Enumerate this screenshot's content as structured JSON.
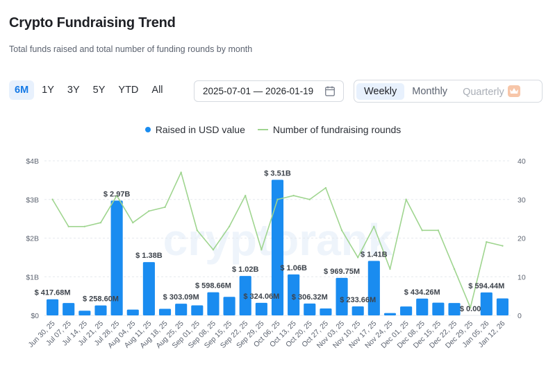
{
  "header": {
    "title": "Crypto Fundraising Trend",
    "subtitle": "Total funds raised and total number of funding rounds by month"
  },
  "range_tabs": [
    {
      "label": "6M",
      "active": true
    },
    {
      "label": "1Y",
      "active": false
    },
    {
      "label": "3Y",
      "active": false
    },
    {
      "label": "5Y",
      "active": false
    },
    {
      "label": "YTD",
      "active": false
    },
    {
      "label": "All",
      "active": false
    }
  ],
  "date_range": {
    "value": "2025-07-01 — 2026-01-19",
    "icon": "calendar-icon"
  },
  "period_tabs": [
    {
      "label": "Weekly",
      "active": true
    },
    {
      "label": "Monthly",
      "active": false
    },
    {
      "label": "Quarterly",
      "active": false,
      "locked": true,
      "icon": "crown-icon"
    }
  ],
  "watermark": "cryptorank",
  "colors": {
    "bar": "#1a8cf0",
    "line": "#9fd58f",
    "accent": "#1479e6",
    "grid": "#e6e9ee"
  },
  "chart_data": {
    "type": "bar",
    "legend": [
      "Raised in USD value",
      "Number of fundraising rounds"
    ],
    "legend_position": "top-center",
    "categories": [
      "Jun 30, 25",
      "Jul 07, 25",
      "Jul 14, 25",
      "Jul 21, 25",
      "Jul 28, 25",
      "Aug 04, 25",
      "Aug 11, 25",
      "Aug 18, 25",
      "Aug 25, 25",
      "Sep 01, 25",
      "Sep 08, 25",
      "Sep 15, 25",
      "Sep 22, 25",
      "Sep 29, 25",
      "Oct 06, 25",
      "Oct 13, 25",
      "Oct 20, 25",
      "Oct 27, 25",
      "Nov 03, 25",
      "Nov 10, 25",
      "Nov 17, 25",
      "Nov 24, 25",
      "Dec 01, 25",
      "Dec 08, 25",
      "Dec 15, 25",
      "Dec 22, 25",
      "Dec 29, 25",
      "Jan 05, 26",
      "Jan 12, 26"
    ],
    "series": [
      {
        "name": "Raised in USD value",
        "type": "bar",
        "axis": "left",
        "values": [
          0.41768,
          0.32,
          0.12,
          0.2586,
          2.97,
          0.15,
          1.38,
          0.17,
          0.30309,
          0.26,
          0.59866,
          0.48,
          1.02,
          0.32406,
          3.51,
          1.06,
          0.30632,
          0.18,
          0.96975,
          0.23366,
          1.41,
          0.06,
          0.23,
          0.43426,
          0.33,
          0.32,
          0.0,
          0.59444,
          0.44
        ]
      },
      {
        "name": "Number of fundraising rounds",
        "type": "line",
        "axis": "right",
        "values": [
          30,
          23,
          23,
          24,
          31,
          24,
          27,
          28,
          37,
          22,
          17,
          23,
          31,
          17,
          30,
          31,
          30,
          33,
          22,
          15,
          23,
          12,
          30,
          22,
          22,
          12,
          2,
          19,
          18
        ]
      }
    ],
    "data_labels": [
      {
        "index": 0,
        "text": "$ 417.68M"
      },
      {
        "index": 3,
        "text": "$ 258.60M"
      },
      {
        "index": 4,
        "text": "$ 2.97B"
      },
      {
        "index": 6,
        "text": "$ 1.38B"
      },
      {
        "index": 8,
        "text": "$ 303.09M"
      },
      {
        "index": 10,
        "text": "$ 598.66M"
      },
      {
        "index": 12,
        "text": "$ 1.02B"
      },
      {
        "index": 13,
        "text": "$ 324.06M"
      },
      {
        "index": 14,
        "text": "$ 3.51B"
      },
      {
        "index": 15,
        "text": "$ 1.06B"
      },
      {
        "index": 16,
        "text": "$ 306.32M"
      },
      {
        "index": 18,
        "text": "$ 969.75M"
      },
      {
        "index": 19,
        "text": "$ 233.66M"
      },
      {
        "index": 20,
        "text": "$ 1.41B"
      },
      {
        "index": 23,
        "text": "$ 434.26M"
      },
      {
        "index": 26,
        "text": "$ 0.00"
      },
      {
        "index": 27,
        "text": "$ 594.44M"
      }
    ],
    "y_left": {
      "ticks": [
        "$0",
        "$1B",
        "$2B",
        "$3B",
        "$4B"
      ],
      "range": [
        0,
        4
      ],
      "unit": "B USD"
    },
    "y_right": {
      "ticks": [
        "0",
        "10",
        "20",
        "30",
        "40"
      ],
      "range": [
        0,
        40
      ]
    },
    "grid": true
  }
}
